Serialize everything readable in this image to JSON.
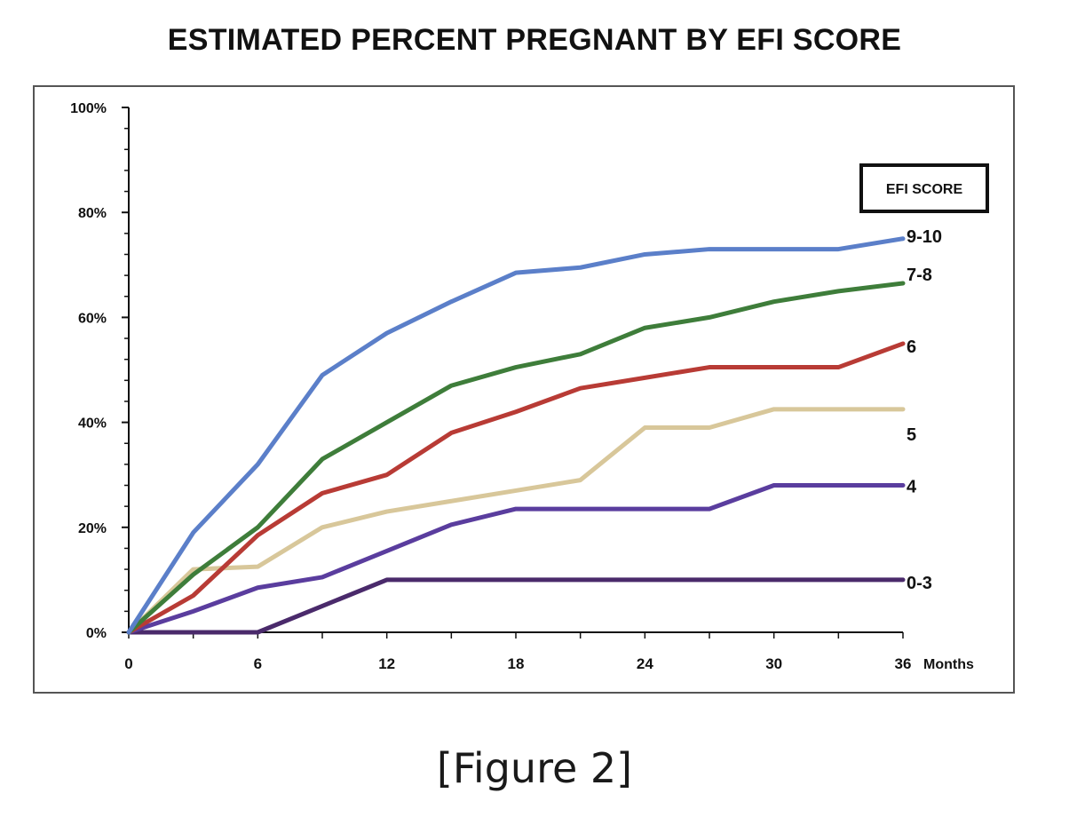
{
  "chart_data": {
    "type": "line",
    "title": "ESTIMATED PERCENT PREGNANT BY EFI SCORE",
    "xlabel": "Months",
    "ylabel": "",
    "x": [
      0,
      3,
      6,
      9,
      12,
      15,
      18,
      21,
      24,
      27,
      30,
      33,
      36
    ],
    "xticks": [
      0,
      6,
      12,
      18,
      24,
      30,
      36
    ],
    "xtick_labels": [
      "0",
      "6",
      "12",
      "18",
      "24",
      "30",
      "36"
    ],
    "yticks": [
      0,
      20,
      40,
      60,
      80,
      100
    ],
    "ytick_labels": [
      "0%",
      "20%",
      "40%",
      "60%",
      "80%",
      "100%"
    ],
    "xlim": [
      0,
      36
    ],
    "ylim": [
      0,
      100
    ],
    "grid": false,
    "legend": {
      "title": "EFI SCORE",
      "placement": "right, labels at line ends"
    },
    "series": [
      {
        "name": "9-10",
        "color": "#5b7fc9",
        "values": [
          0,
          19,
          32,
          49,
          57,
          63,
          68.5,
          69.5,
          72,
          73,
          73,
          73,
          75
        ]
      },
      {
        "name": "7-8",
        "color": "#3e7d3a",
        "values": [
          0,
          11,
          20,
          33,
          40,
          47,
          50.5,
          53,
          58,
          60,
          63,
          65,
          66.5
        ]
      },
      {
        "name": "6",
        "color": "#b83b35",
        "values": [
          0,
          7,
          18.5,
          26.5,
          30,
          38,
          42,
          46.5,
          48.5,
          50.5,
          50.5,
          50.5,
          55
        ]
      },
      {
        "name": "5",
        "color": "#d8c79a",
        "values": [
          0,
          12,
          12.5,
          20,
          23,
          25,
          27,
          29,
          39,
          39,
          42.5,
          42.5,
          42.5
        ]
      },
      {
        "name": "4",
        "color": "#5a3d9e",
        "values": [
          0,
          4,
          8.5,
          10.5,
          15.5,
          20.5,
          23.5,
          23.5,
          23.5,
          23.5,
          28,
          28,
          28
        ]
      },
      {
        "name": "0-3",
        "color": "#4a2a6b",
        "values": [
          0,
          0,
          0,
          5,
          10,
          10,
          10,
          10,
          10,
          10,
          10,
          10,
          10
        ]
      }
    ]
  },
  "caption": "[Figure 2]"
}
